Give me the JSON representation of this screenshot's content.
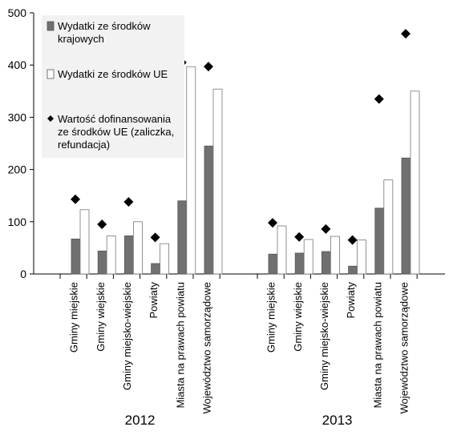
{
  "chart_data": {
    "type": "bar",
    "groups": [
      "2012",
      "2013"
    ],
    "categories": [
      "Gminy miejskie",
      "Gminy wiejskie",
      "Gminy miejsko-wiejskie",
      "Powiaty",
      "Miasta na prawach powiatu",
      "Województwo samorządowe"
    ],
    "series": [
      {
        "name": "Wydatki ze środków krajowych",
        "kind": "bar",
        "color": "#707070",
        "values": {
          "2012": [
            67,
            44,
            73,
            20,
            140,
            245
          ],
          "2013": [
            38,
            40,
            43,
            15,
            126,
            222
          ]
        }
      },
      {
        "name": "Wydatki ze środków UE",
        "kind": "bar",
        "color": "#ffffff",
        "values": {
          "2012": [
            123,
            73,
            100,
            58,
            397,
            354
          ],
          "2013": [
            92,
            66,
            72,
            65,
            180,
            350
          ]
        }
      },
      {
        "name": "Wartość dofinansowania ze środków UE (zaliczka, refundacja)",
        "kind": "marker",
        "color": "#000000",
        "values": {
          "2012": [
            143,
            95,
            138,
            70,
            405,
            397
          ],
          "2013": [
            98,
            71,
            86,
            65,
            335,
            460
          ]
        }
      }
    ],
    "legend": {
      "items": [
        {
          "lines": [
            "Wydatki ze środków",
            "krajowych"
          ]
        },
        {
          "lines": [
            "Wydatki ze środków UE"
          ]
        },
        {
          "lines": [
            "Wartość dofinansowania",
            "ze środków UE (zaliczka,",
            "refundacja)"
          ]
        }
      ],
      "placement": "top-left"
    },
    "y_ticks": [
      "0",
      "100",
      "200",
      "300",
      "400",
      "500"
    ],
    "ylim": [
      0,
      500
    ],
    "grid": false
  }
}
